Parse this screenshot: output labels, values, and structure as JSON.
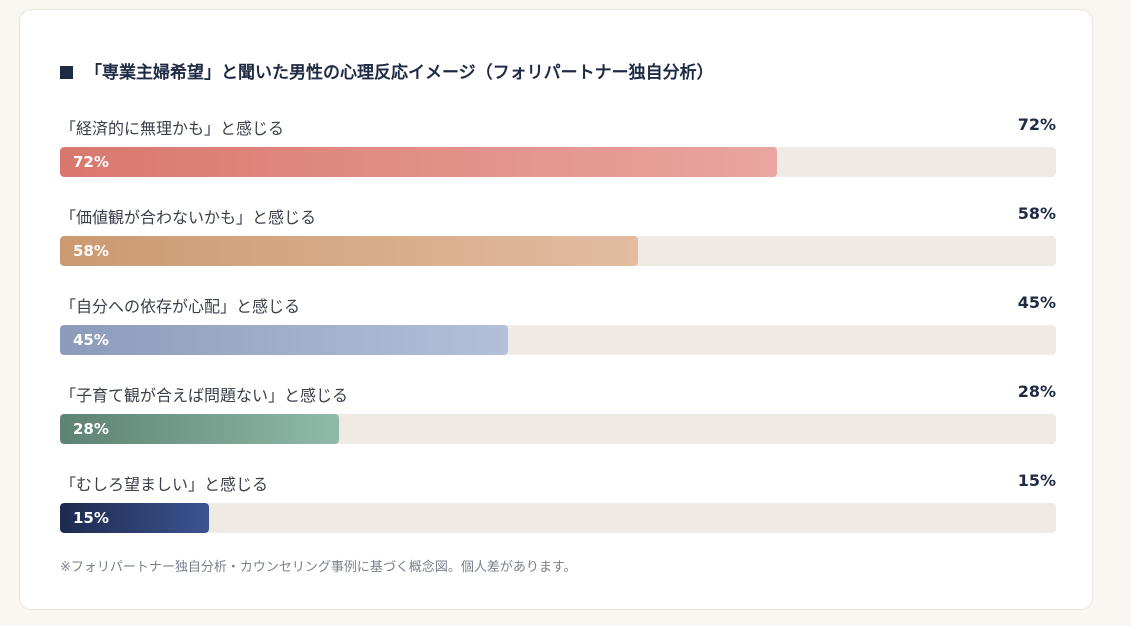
{
  "chart_data": {
    "type": "bar",
    "orientation": "horizontal",
    "title": "「専業主婦希望」と聞いた男性の心理反応イメージ（フォリパートナー独自分析）",
    "categories": [
      "「経済的に無理かも」と感じる",
      "「価値観が合わないかも」と感じる",
      "「自分への依存が心配」と感じる",
      "「子育て観が合えば問題ない」と感じる",
      "「むしろ望ましい」と感じる"
    ],
    "values": [
      72,
      58,
      45,
      28,
      15
    ],
    "value_labels": [
      "72%",
      "58%",
      "45%",
      "28%",
      "15%"
    ],
    "xlim": [
      0,
      100
    ],
    "unit": "%",
    "grid": false,
    "colors": [
      [
        "#d9776d",
        "#e9a6a0"
      ],
      [
        "#cc9970",
        "#e2bca0"
      ],
      [
        "#8d9bbb",
        "#b2c1d9"
      ],
      [
        "#5e8273",
        "#8fbaa9"
      ],
      [
        "#1d2a4e",
        "#3d5492"
      ]
    ],
    "track_color": "#f0eae4",
    "note": "※フォリパートナー独自分析・カウンセリング事例に基づく概念図。個人差があります。"
  }
}
